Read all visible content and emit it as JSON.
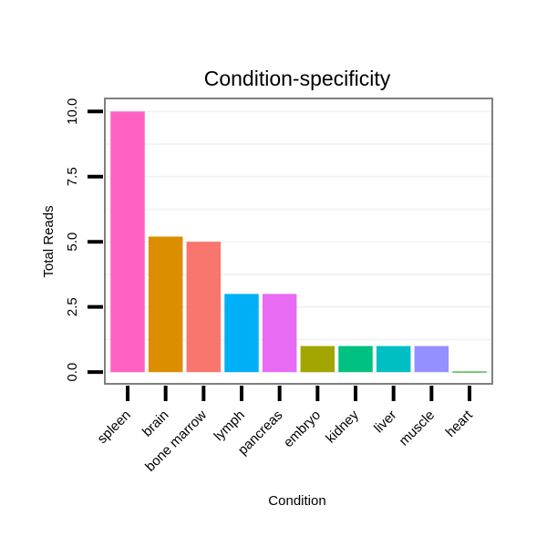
{
  "chart_data": {
    "type": "bar",
    "title": "Condition-specificity",
    "xlabel": "Condition",
    "ylabel": "Total Reads",
    "categories": [
      "spleen",
      "brain",
      "bone marrow",
      "lymph",
      "pancreas",
      "embryo",
      "kidney",
      "liver",
      "muscle",
      "heart"
    ],
    "values": [
      10,
      5.2,
      5,
      3,
      3,
      1,
      1,
      1,
      1,
      0.02
    ],
    "colors": [
      "#FF61C3",
      "#DB8E00",
      "#F8766D",
      "#00B0F6",
      "#E76BF3",
      "#A3A500",
      "#00C082",
      "#00BFC4",
      "#9590FF",
      "#00A000"
    ],
    "yticks": [
      "0.0",
      "2.5",
      "5.0",
      "7.5",
      "10.0"
    ],
    "ytick_values": [
      0,
      2.5,
      5,
      7.5,
      10
    ],
    "ylim": [
      -0.45,
      10.5
    ],
    "grid": true,
    "legend": "none"
  }
}
